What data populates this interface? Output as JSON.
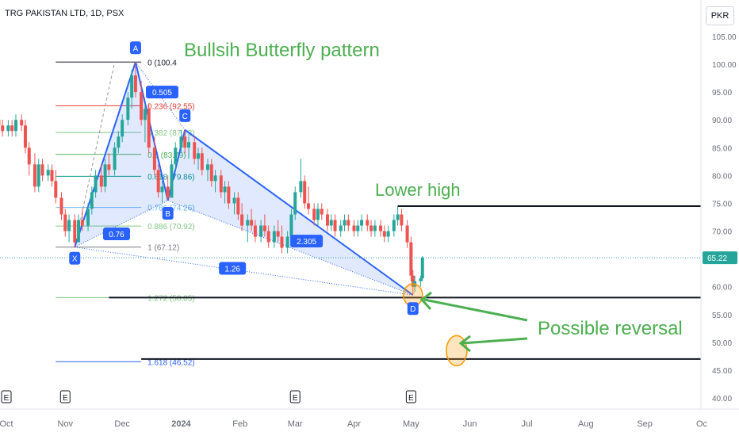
{
  "chart_data": {
    "type": "candlestick",
    "title": "TRG PAKISTAN LTD, 1D, PSX",
    "currency": "PKR",
    "last_price": "65.22",
    "y_ticks": [
      "105.00",
      "100.00",
      "95.00",
      "90.00",
      "85.00",
      "80.00",
      "75.00",
      "70.00",
      "65.00",
      "60.00",
      "55.00",
      "50.00",
      "45.00",
      "40.00"
    ],
    "x_ticks": [
      "Oct",
      "Nov",
      "Dec",
      "2024",
      "Feb",
      "Mar",
      "Apr",
      "May",
      "Jun",
      "Jul",
      "Aug",
      "Sep",
      "Oc"
    ],
    "ylim": [
      39.5,
      107
    ],
    "earnings_markers": [
      "E",
      "E",
      "E",
      "E"
    ],
    "pattern": {
      "title": "Bullsih Butterfly pattern",
      "points": [
        {
          "label": "X",
          "date": "2023-11-06",
          "price": 67.12
        },
        {
          "label": "A",
          "date": "2023-12-08",
          "price": 100.4
        },
        {
          "label": "B",
          "date": "2023-12-25",
          "price": 75.5
        },
        {
          "label": "C",
          "date": "2024-01-03",
          "price": 88.2
        },
        {
          "label": "D",
          "date": "2024-05-02",
          "price": 58.5
        }
      ],
      "ratios": [
        "0.76",
        "0.505",
        "2.305",
        "1.26"
      ]
    },
    "fib_levels": [
      {
        "ratio": "0",
        "price": "100.4",
        "label": "0 (100.4",
        "color": "#131722"
      },
      {
        "ratio": "0.236",
        "price": "92.55",
        "label": "0.236 (92.55)",
        "color": "#e53935"
      },
      {
        "ratio": "0.382",
        "price": "87.73",
        "label": "0.382 (87.73)",
        "color": "#81c784"
      },
      {
        "ratio": "0.5",
        "price": "83.79",
        "label": "0.5 (83.79)",
        "color": "#4caf50"
      },
      {
        "ratio": "0.618",
        "price": "79.86",
        "label": "0.618 (79.86)",
        "color": "#009688"
      },
      {
        "ratio": "0.786",
        "price": "74.26",
        "label": "0.786 (74.26)",
        "color": "#64b5f6"
      },
      {
        "ratio": "0.886",
        "price": "70.92",
        "label": "0.886 (70.92)",
        "color": "#81c784"
      },
      {
        "ratio": "1",
        "price": "67.12",
        "label": "1 (67.12)",
        "color": "#787b86"
      },
      {
        "ratio": "1.272",
        "price": "58.05",
        "label": "1.272 (58.05)",
        "color": "#81c784"
      },
      {
        "ratio": "1.618",
        "price": "46.52",
        "label": "1.618 (46.52)",
        "color": "#2962ff"
      }
    ],
    "horizontal_lines": [
      74.5,
      58.05,
      47.0
    ],
    "annotations": [
      "Lower high",
      "Possible reversal"
    ],
    "candles": [
      {
        "d": "2023-09-25",
        "o": 89,
        "h": 91,
        "l": 87,
        "c": 90
      },
      {
        "d": "2023-09-27",
        "o": 90,
        "h": 91,
        "l": 88,
        "c": 89
      },
      {
        "d": "2023-09-29",
        "o": 89,
        "h": 90,
        "l": 87,
        "c": 88
      },
      {
        "d": "2023-10-02",
        "o": 88,
        "h": 90,
        "l": 87,
        "c": 89
      },
      {
        "d": "2023-10-04",
        "o": 89,
        "h": 90,
        "l": 87,
        "c": 88
      },
      {
        "d": "2023-10-06",
        "o": 88,
        "h": 91,
        "l": 87,
        "c": 90
      },
      {
        "d": "2023-10-09",
        "o": 90,
        "h": 91,
        "l": 88,
        "c": 89
      },
      {
        "d": "2023-10-11",
        "o": 89,
        "h": 90,
        "l": 84,
        "c": 85
      },
      {
        "d": "2023-10-13",
        "o": 85,
        "h": 86,
        "l": 80,
        "c": 82
      },
      {
        "d": "2023-10-16",
        "o": 82,
        "h": 84,
        "l": 77,
        "c": 78
      },
      {
        "d": "2023-10-18",
        "o": 78,
        "h": 83,
        "l": 77,
        "c": 82
      },
      {
        "d": "2023-10-20",
        "o": 82,
        "h": 83,
        "l": 79,
        "c": 80
      },
      {
        "d": "2023-10-23",
        "o": 80,
        "h": 82,
        "l": 79,
        "c": 81
      },
      {
        "d": "2023-10-25",
        "o": 81,
        "h": 82,
        "l": 78,
        "c": 79
      },
      {
        "d": "2023-10-27",
        "o": 79,
        "h": 81,
        "l": 75,
        "c": 76
      },
      {
        "d": "2023-10-30",
        "o": 76,
        "h": 77,
        "l": 72,
        "c": 73
      },
      {
        "d": "2023-11-01",
        "o": 73,
        "h": 74,
        "l": 69,
        "c": 70
      },
      {
        "d": "2023-11-03",
        "o": 70,
        "h": 73,
        "l": 68,
        "c": 72
      },
      {
        "d": "2023-11-06",
        "o": 72,
        "h": 73,
        "l": 67,
        "c": 68
      },
      {
        "d": "2023-11-08",
        "o": 68,
        "h": 73,
        "l": 68,
        "c": 72
      },
      {
        "d": "2023-11-10",
        "o": 72,
        "h": 74,
        "l": 70,
        "c": 71
      },
      {
        "d": "2023-11-13",
        "o": 71,
        "h": 75,
        "l": 70,
        "c": 74
      },
      {
        "d": "2023-11-15",
        "o": 74,
        "h": 78,
        "l": 73,
        "c": 77
      },
      {
        "d": "2023-11-17",
        "o": 77,
        "h": 81,
        "l": 76,
        "c": 80
      },
      {
        "d": "2023-11-20",
        "o": 80,
        "h": 82,
        "l": 77,
        "c": 78
      },
      {
        "d": "2023-11-22",
        "o": 78,
        "h": 83,
        "l": 77,
        "c": 82
      },
      {
        "d": "2023-11-24",
        "o": 82,
        "h": 84,
        "l": 80,
        "c": 81
      },
      {
        "d": "2023-11-27",
        "o": 81,
        "h": 86,
        "l": 80,
        "c": 85
      },
      {
        "d": "2023-11-29",
        "o": 85,
        "h": 88,
        "l": 84,
        "c": 87
      },
      {
        "d": "2023-12-01",
        "o": 87,
        "h": 91,
        "l": 86,
        "c": 90
      },
      {
        "d": "2023-12-04",
        "o": 90,
        "h": 95,
        "l": 89,
        "c": 94
      },
      {
        "d": "2023-12-06",
        "o": 94,
        "h": 99,
        "l": 92,
        "c": 98
      },
      {
        "d": "2023-12-08",
        "o": 98,
        "h": 100.4,
        "l": 94,
        "c": 95
      },
      {
        "d": "2023-12-11",
        "o": 95,
        "h": 97,
        "l": 89,
        "c": 90
      },
      {
        "d": "2023-12-13",
        "o": 90,
        "h": 93,
        "l": 86,
        "c": 92
      },
      {
        "d": "2023-12-15",
        "o": 92,
        "h": 93,
        "l": 84,
        "c": 85
      },
      {
        "d": "2023-12-18",
        "o": 85,
        "h": 87,
        "l": 80,
        "c": 81
      },
      {
        "d": "2023-12-20",
        "o": 81,
        "h": 82,
        "l": 76,
        "c": 77
      },
      {
        "d": "2023-12-22",
        "o": 77,
        "h": 79,
        "l": 75,
        "c": 78
      },
      {
        "d": "2023-12-25",
        "o": 78,
        "h": 80,
        "l": 75.5,
        "c": 76
      },
      {
        "d": "2023-12-27",
        "o": 76,
        "h": 83,
        "l": 76,
        "c": 82
      },
      {
        "d": "2023-12-29",
        "o": 82,
        "h": 86,
        "l": 81,
        "c": 85
      },
      {
        "d": "2024-01-01",
        "o": 85,
        "h": 88.2,
        "l": 84,
        "c": 87
      },
      {
        "d": "2024-01-03",
        "o": 87,
        "h": 88.2,
        "l": 84,
        "c": 85
      },
      {
        "d": "2024-01-05",
        "o": 85,
        "h": 87,
        "l": 83,
        "c": 86
      },
      {
        "d": "2024-01-08",
        "o": 86,
        "h": 87,
        "l": 82,
        "c": 83
      },
      {
        "d": "2024-01-10",
        "o": 83,
        "h": 85,
        "l": 81,
        "c": 84
      },
      {
        "d": "2024-01-12",
        "o": 84,
        "h": 85,
        "l": 80,
        "c": 81
      },
      {
        "d": "2024-01-15",
        "o": 81,
        "h": 83,
        "l": 79,
        "c": 82
      },
      {
        "d": "2024-01-17",
        "o": 82,
        "h": 83,
        "l": 78,
        "c": 79
      },
      {
        "d": "2024-01-19",
        "o": 79,
        "h": 81,
        "l": 77,
        "c": 80
      },
      {
        "d": "2024-01-22",
        "o": 80,
        "h": 81,
        "l": 76,
        "c": 77
      },
      {
        "d": "2024-01-24",
        "o": 77,
        "h": 79,
        "l": 75,
        "c": 78
      },
      {
        "d": "2024-01-26",
        "o": 78,
        "h": 79,
        "l": 74,
        "c": 75
      },
      {
        "d": "2024-01-29",
        "o": 75,
        "h": 77,
        "l": 73,
        "c": 76
      },
      {
        "d": "2024-01-31",
        "o": 76,
        "h": 77,
        "l": 72,
        "c": 73
      },
      {
        "d": "2024-02-02",
        "o": 73,
        "h": 75,
        "l": 70,
        "c": 71
      },
      {
        "d": "2024-02-05",
        "o": 71,
        "h": 73,
        "l": 68,
        "c": 72
      },
      {
        "d": "2024-02-07",
        "o": 72,
        "h": 74,
        "l": 70,
        "c": 71
      },
      {
        "d": "2024-02-09",
        "o": 71,
        "h": 72,
        "l": 68,
        "c": 69
      },
      {
        "d": "2024-02-12",
        "o": 69,
        "h": 72,
        "l": 68,
        "c": 71
      },
      {
        "d": "2024-02-14",
        "o": 71,
        "h": 73,
        "l": 69,
        "c": 70
      },
      {
        "d": "2024-02-16",
        "o": 70,
        "h": 71,
        "l": 67,
        "c": 68
      },
      {
        "d": "2024-02-19",
        "o": 68,
        "h": 71,
        "l": 67,
        "c": 70
      },
      {
        "d": "2024-02-21",
        "o": 70,
        "h": 72,
        "l": 68,
        "c": 69
      },
      {
        "d": "2024-02-23",
        "o": 69,
        "h": 71,
        "l": 66,
        "c": 67
      },
      {
        "d": "2024-02-26",
        "o": 67,
        "h": 70,
        "l": 66,
        "c": 69
      },
      {
        "d": "2024-02-28",
        "o": 69,
        "h": 74,
        "l": 68,
        "c": 73
      },
      {
        "d": "2024-03-01",
        "o": 73,
        "h": 78,
        "l": 72,
        "c": 77
      },
      {
        "d": "2024-03-04",
        "o": 77,
        "h": 83,
        "l": 76,
        "c": 79
      },
      {
        "d": "2024-03-06",
        "o": 79,
        "h": 80,
        "l": 74,
        "c": 75
      },
      {
        "d": "2024-03-08",
        "o": 75,
        "h": 78,
        "l": 73,
        "c": 74
      },
      {
        "d": "2024-03-11",
        "o": 74,
        "h": 75,
        "l": 71,
        "c": 72
      },
      {
        "d": "2024-03-13",
        "o": 72,
        "h": 75,
        "l": 71,
        "c": 74
      },
      {
        "d": "2024-03-15",
        "o": 74,
        "h": 75,
        "l": 72,
        "c": 73
      },
      {
        "d": "2024-03-18",
        "o": 73,
        "h": 74,
        "l": 70,
        "c": 71
      },
      {
        "d": "2024-03-20",
        "o": 71,
        "h": 73,
        "l": 70,
        "c": 72
      },
      {
        "d": "2024-03-22",
        "o": 72,
        "h": 73,
        "l": 69,
        "c": 70
      },
      {
        "d": "2024-03-25",
        "o": 70,
        "h": 72,
        "l": 69,
        "c": 71
      },
      {
        "d": "2024-03-27",
        "o": 71,
        "h": 73,
        "l": 70,
        "c": 72
      },
      {
        "d": "2024-03-29",
        "o": 72,
        "h": 73,
        "l": 70,
        "c": 71
      },
      {
        "d": "2024-04-01",
        "o": 71,
        "h": 72,
        "l": 69,
        "c": 70
      },
      {
        "d": "2024-04-03",
        "o": 70,
        "h": 72,
        "l": 69,
        "c": 71
      },
      {
        "d": "2024-04-05",
        "o": 71,
        "h": 73,
        "l": 70,
        "c": 72
      },
      {
        "d": "2024-04-08",
        "o": 72,
        "h": 73,
        "l": 70,
        "c": 71
      },
      {
        "d": "2024-04-10",
        "o": 71,
        "h": 72,
        "l": 69,
        "c": 70
      },
      {
        "d": "2024-04-12",
        "o": 70,
        "h": 72,
        "l": 69,
        "c": 71
      },
      {
        "d": "2024-04-15",
        "o": 71,
        "h": 72,
        "l": 69,
        "c": 70
      },
      {
        "d": "2024-04-17",
        "o": 70,
        "h": 71,
        "l": 68,
        "c": 69
      },
      {
        "d": "2024-04-19",
        "o": 69,
        "h": 71,
        "l": 68,
        "c": 70
      },
      {
        "d": "2024-04-22",
        "o": 70,
        "h": 73,
        "l": 69,
        "c": 72
      },
      {
        "d": "2024-04-24",
        "o": 72,
        "h": 74.5,
        "l": 71,
        "c": 73
      },
      {
        "d": "2024-04-26",
        "o": 73,
        "h": 74,
        "l": 70,
        "c": 71
      },
      {
        "d": "2024-04-29",
        "o": 71,
        "h": 72,
        "l": 67,
        "c": 68
      },
      {
        "d": "2024-05-01",
        "o": 68,
        "h": 69,
        "l": 61,
        "c": 62
      },
      {
        "d": "2024-05-02",
        "o": 62,
        "h": 63,
        "l": 58.5,
        "c": 60
      },
      {
        "d": "2024-05-03",
        "o": 60,
        "h": 62,
        "l": 59,
        "c": 61
      },
      {
        "d": "2024-05-06",
        "o": 61,
        "h": 62,
        "l": 60,
        "c": 61.5
      },
      {
        "d": "2024-05-07",
        "o": 61.5,
        "h": 65.5,
        "l": 61,
        "c": 65.22
      }
    ]
  }
}
